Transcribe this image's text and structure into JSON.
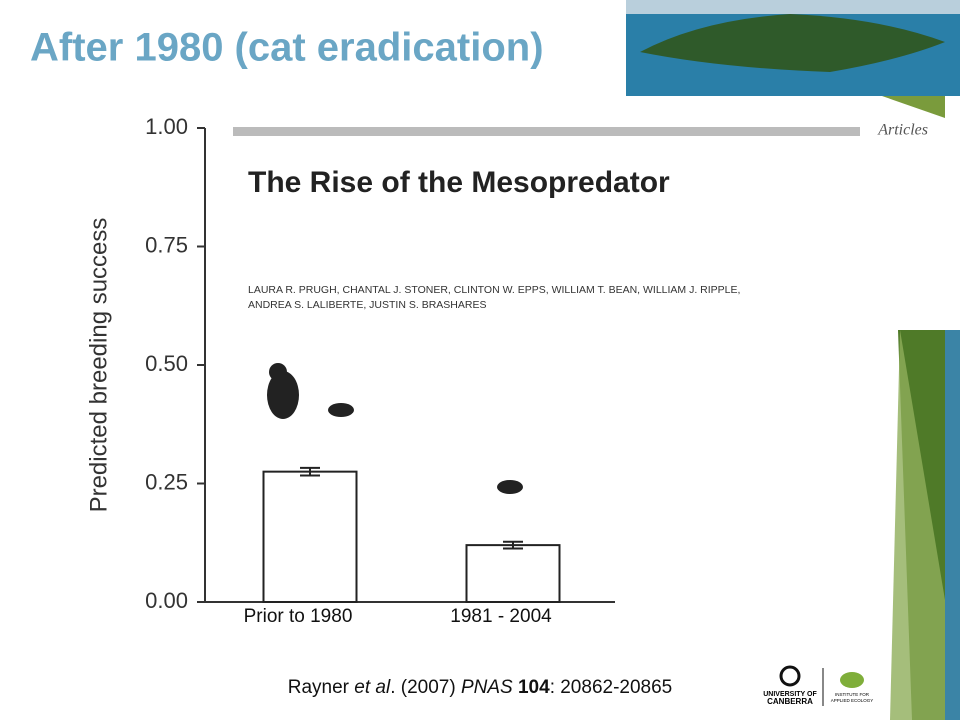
{
  "chart_data": {
    "type": "bar",
    "title": "After 1980 (cat eradication)",
    "y_label": "Predicted breeding success",
    "categories": [
      "Prior to 1980",
      "1981 - 2004"
    ],
    "values": [
      0.275,
      0.12
    ],
    "errors": [
      0.008,
      0.007
    ],
    "color": "#ffffff",
    "ylim": [
      0,
      1
    ],
    "yticks": [
      {
        "value": 0,
        "label": "0.00"
      },
      {
        "value": 0.25,
        "label": "0.25"
      },
      {
        "value": 0.5,
        "label": "0.50"
      },
      {
        "value": 0.75,
        "label": "0.75"
      },
      {
        "value": 1,
        "label": "1.00"
      }
    ],
    "grid": false
  },
  "article": {
    "section": "Articles",
    "title": "The Rise of the Mesopredator",
    "authors": [
      "LAURA R. PRUGH, CHANTAL J. STONER, CLINTON W. EPPS, WILLIAM T. BEAN, WILLIAM J. RIPPLE,",
      "ANDREA S. LALIBERTE, JUSTIN S. BRASHARES"
    ]
  },
  "citation": [
    "Rayner ",
    "et al",
    ". (2007) ",
    "PNAS",
    " ",
    "104",
    ": 20862-20865"
  ],
  "logos": {
    "university": [
      "UNIVERSITY OF",
      "CANBERRA"
    ],
    "institute": [
      "INSTITUTE FOR",
      "APPLIED ECOLOGY"
    ]
  }
}
